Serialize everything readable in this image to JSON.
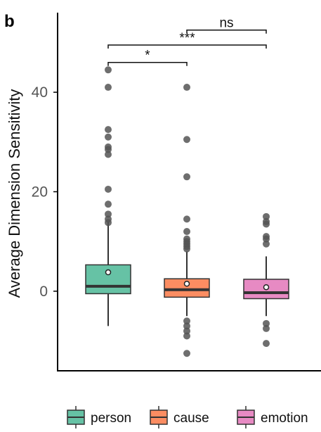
{
  "panel_label": "b",
  "chart_data": {
    "type": "boxplot",
    "ylabel": "Average Dimension Sensitivity",
    "xlabel": "",
    "ylim": [
      -16,
      56
    ],
    "yticks": [
      0,
      20,
      40
    ],
    "grid": false,
    "legend_position": "bottom",
    "categories": [
      "person",
      "cause",
      "emotion"
    ],
    "colors": [
      "#66c2a5",
      "#fc8d62",
      "#e78ac3"
    ],
    "boxes": [
      {
        "name": "person",
        "whisker_low": -7,
        "q1": -0.5,
        "median": 1,
        "q3": 5.3,
        "whisker_high": 14,
        "mean": 3.8,
        "outliers": [
          44.5,
          41,
          32.5,
          31,
          29,
          28.5,
          27.5,
          20.5,
          17.5,
          15.5,
          14.5,
          13.8
        ]
      },
      {
        "name": "cause",
        "whisker_low": -5,
        "q1": -1.2,
        "median": 0.3,
        "q3": 2.5,
        "whisker_high": 8,
        "mean": 1.5,
        "outliers": [
          41,
          30.5,
          23,
          14.5,
          12,
          10.5,
          10,
          9.5,
          9,
          8.5,
          -6,
          -7,
          -8,
          -9,
          -12.5
        ]
      },
      {
        "name": "emotion",
        "whisker_low": -5,
        "q1": -1.5,
        "median": -0.3,
        "q3": 2.4,
        "whisker_high": 7,
        "mean": 0.8,
        "outliers": [
          15,
          14,
          13.5,
          11,
          10.5,
          9.5,
          -6.5,
          -7.5,
          -10.5
        ]
      }
    ],
    "significance": [
      {
        "from": 0,
        "to": 1,
        "label": "*",
        "y": 46
      },
      {
        "from": 0,
        "to": 2,
        "label": "***",
        "y": 49.5
      },
      {
        "from": 1,
        "to": 2,
        "label": "ns",
        "y": 52.5
      }
    ]
  }
}
